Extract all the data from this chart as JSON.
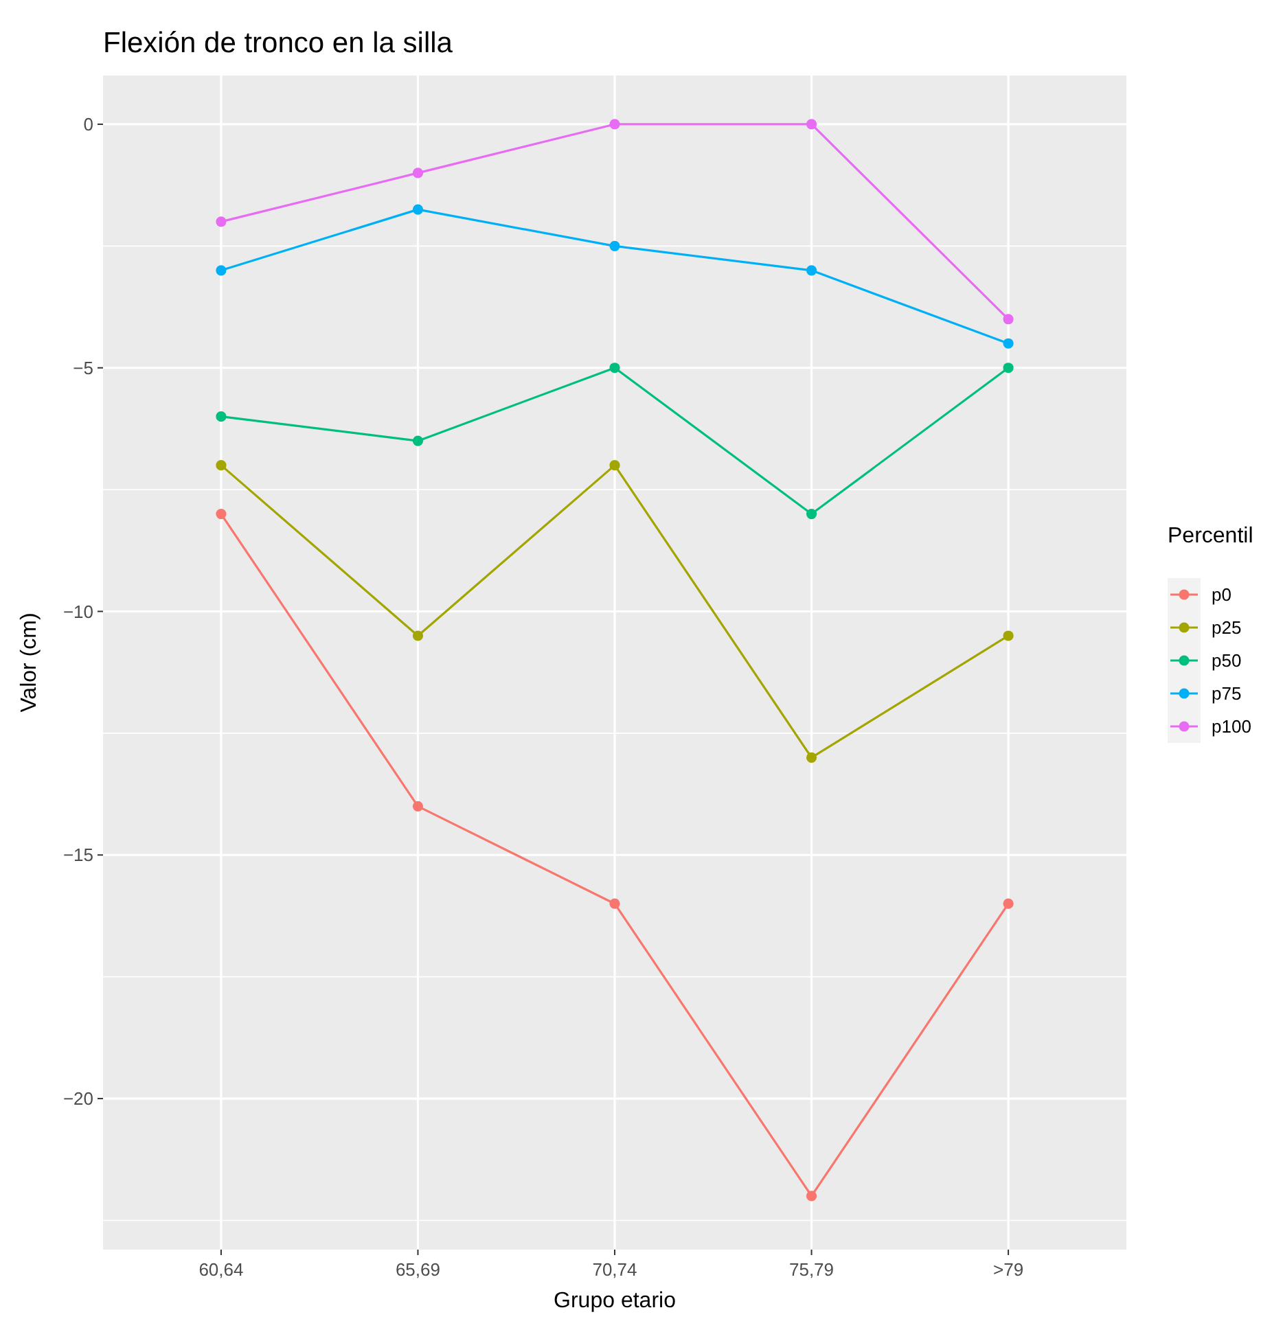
{
  "chart_data": {
    "type": "line",
    "title": "Flexión de tronco en la silla",
    "xlabel": "Grupo etario",
    "ylabel": "Valor (cm)",
    "legend_title": "Percentil",
    "categories": [
      "60,64",
      "65,69",
      "70,74",
      "75,79",
      ">79"
    ],
    "series": [
      {
        "name": "p0",
        "color": "#f8766d",
        "values": [
          -8,
          -14,
          -16,
          -22,
          -16
        ]
      },
      {
        "name": "p25",
        "color": "#a3a500",
        "values": [
          -7,
          -10.5,
          -7,
          -13,
          -10.5
        ]
      },
      {
        "name": "p50",
        "color": "#00bf7d",
        "values": [
          -6,
          -6.5,
          -5,
          -8,
          -5
        ]
      },
      {
        "name": "p75",
        "color": "#00b0f6",
        "values": [
          -3,
          -1.75,
          -2.5,
          -3,
          -4.5
        ]
      },
      {
        "name": "p100",
        "color": "#e76bf3",
        "values": [
          -2,
          -1,
          0,
          0,
          -4
        ]
      }
    ],
    "ylim": [
      -23.1,
      1.0
    ],
    "yticks": [
      0,
      -5,
      -10,
      -15,
      -20
    ],
    "grid": true,
    "legend": "right",
    "marker": "circle",
    "line_style": "solid"
  }
}
